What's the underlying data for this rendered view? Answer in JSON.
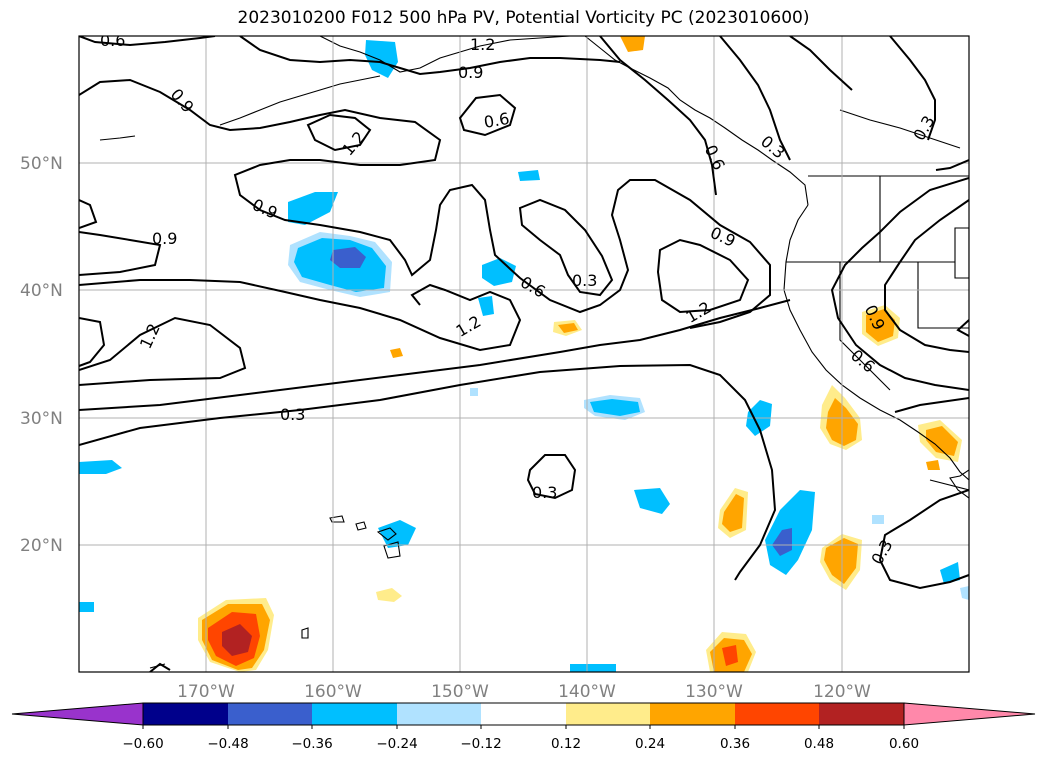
{
  "title": "2023010200 F012 500 hPa PV, Potential Vorticity PC (2023010600)",
  "map": {
    "lat_labels": [
      "50°N",
      "40°N",
      "30°N",
      "20°N"
    ],
    "lon_labels": [
      "170°W",
      "160°W",
      "150°W",
      "140°W",
      "130°W",
      "120°W"
    ],
    "contour_labels": [
      "0.6",
      "1.2",
      "0.9",
      "0.9",
      "0.6",
      "1.2",
      "0.9",
      "0.9",
      "1.2",
      "0.3",
      "0.6",
      "0.3",
      "0.6",
      "0.9",
      "1.2",
      "1.2",
      "0.3",
      "0.3",
      "0.9",
      "0.6",
      "0.3",
      "0.3"
    ],
    "colors": {
      "land_outline": "#000000",
      "grid": "#b0b0b0",
      "contour": "#000000"
    }
  },
  "colorbar": {
    "tick_labels": [
      "−0.60",
      "−0.48",
      "−0.36",
      "−0.24",
      "−0.12",
      "0.12",
      "0.24",
      "0.36",
      "0.48",
      "0.60"
    ],
    "colors": [
      "#9933cc",
      "#00008b",
      "#3a5fcd",
      "#00bfff",
      "#b0e2ff",
      "#ffffff",
      "#ffec8b",
      "#ffa500",
      "#ff4500",
      "#b22222",
      "#ff88aa"
    ]
  }
}
